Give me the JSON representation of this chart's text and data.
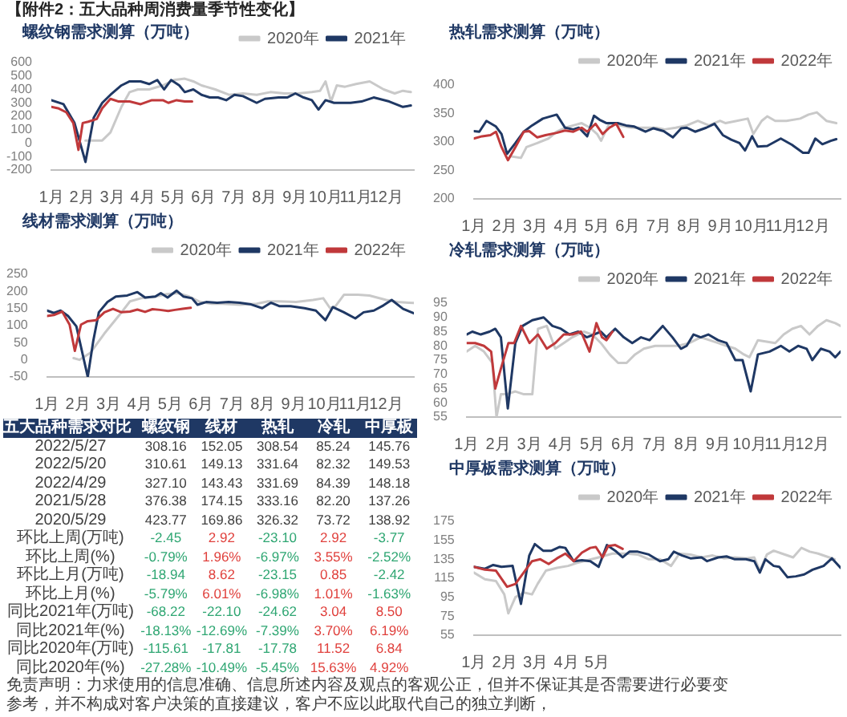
{
  "chart_data": [
    {
      "type": "other",
      "title": "【附件2：五大品种周消费量季节性变化】"
    },
    {
      "type": "line",
      "title": "螺纹钢需求测算（万吨）",
      "legend": "top right",
      "grid": false,
      "xlim": [
        1,
        12.9
      ],
      "xticks": [
        {
          "value": 1,
          "label": "1月"
        },
        {
          "value": 2,
          "label": "2月"
        },
        {
          "value": 3,
          "label": "3月"
        },
        {
          "value": 4,
          "label": "4月"
        },
        {
          "value": 5,
          "label": "5月"
        },
        {
          "value": 6,
          "label": "6月"
        },
        {
          "value": 7,
          "label": "7月"
        },
        {
          "value": 8,
          "label": "8月"
        },
        {
          "value": 9,
          "label": "9月"
        },
        {
          "value": 10,
          "label": "10月"
        },
        {
          "value": 11,
          "label": "11月"
        },
        {
          "value": 12,
          "label": "12月"
        }
      ],
      "ylim": [
        -200,
        600
      ],
      "yticks": [
        -200,
        -100,
        0,
        100,
        200,
        300,
        400,
        500,
        600
      ],
      "series": [
        {
          "name": "2020年",
          "color": "#c9c9c9",
          "x": [
            2.12,
            2.39,
            2.67,
            2.94,
            3.3,
            3.57,
            3.84,
            4.21,
            4.66,
            5.02,
            5.38,
            5.66,
            5.93,
            6.38,
            6.83,
            7.29,
            7.74,
            8.19,
            8.65,
            9.1,
            9.55,
            9.82,
            10.0,
            10.18,
            10.37,
            10.64,
            11.0,
            11.45,
            11.91,
            12.27,
            12.54,
            12.8
          ],
          "values": [
            20,
            20,
            20,
            80,
            270,
            380,
            400,
            400,
            430,
            470,
            480,
            460,
            430,
            400,
            360,
            370,
            360,
            380,
            370,
            370,
            380,
            390,
            460,
            310,
            430,
            420,
            440,
            460,
            400,
            370,
            390,
            380
          ]
        },
        {
          "name": "2021年",
          "color": "#1f3864",
          "x": [
            1.0,
            1.4,
            1.76,
            2.12,
            2.39,
            2.67,
            2.94,
            3.3,
            3.57,
            3.93,
            4.21,
            4.48,
            4.7,
            4.93,
            5.2,
            5.38,
            5.66,
            5.93,
            6.2,
            6.47,
            6.74,
            7.01,
            7.29,
            7.74,
            8.01,
            8.46,
            8.74,
            9.01,
            9.28,
            9.55,
            9.77,
            10.0,
            10.28,
            10.55,
            10.82,
            11.18,
            11.58,
            12.09,
            12.54,
            12.8
          ],
          "values": [
            320,
            290,
            150,
            -140,
            190,
            300,
            360,
            430,
            460,
            460,
            440,
            470,
            400,
            470,
            430,
            380,
            400,
            360,
            340,
            340,
            320,
            360,
            350,
            300,
            330,
            340,
            340,
            370,
            340,
            320,
            250,
            320,
            300,
            300,
            300,
            310,
            340,
            310,
            270,
            280
          ]
        },
        {
          "color": "#c0393b",
          "x": [
            1.0,
            1.22,
            1.49,
            1.72,
            1.89,
            2.03,
            2.21,
            2.49,
            2.67,
            2.94,
            3.21,
            3.57,
            3.93,
            4.3,
            4.66,
            4.84,
            5.11,
            5.38,
            5.62
          ],
          "values": [
            270,
            260,
            230,
            150,
            -50,
            150,
            160,
            180,
            260,
            330,
            310,
            310,
            290,
            320,
            320,
            300,
            320,
            310,
            310
          ]
        }
      ]
    },
    {
      "type": "line",
      "title": "热轧需求测算（万吨）",
      "legend": "top right",
      "grid": false,
      "xlim": [
        1,
        12.9
      ],
      "xticks": [
        {
          "value": 1,
          "label": "1月"
        },
        {
          "value": 2,
          "label": "2月"
        },
        {
          "value": 3,
          "label": "3月"
        },
        {
          "value": 4,
          "label": "4月"
        },
        {
          "value": 5,
          "label": "5月"
        },
        {
          "value": 6,
          "label": "6月"
        },
        {
          "value": 7,
          "label": "7月"
        },
        {
          "value": 8,
          "label": "8月"
        },
        {
          "value": 9,
          "label": "9月"
        },
        {
          "value": 10,
          "label": "10月"
        },
        {
          "value": 11,
          "label": "11月"
        },
        {
          "value": 12,
          "label": "12月"
        }
      ],
      "ylim": [
        200,
        400
      ],
      "yticks": [
        200,
        250,
        300,
        350,
        400
      ],
      "series": [
        {
          "name": "2020年",
          "color": "#c9c9c9",
          "x": [
            2.17,
            2.53,
            2.71,
            3.06,
            3.42,
            3.69,
            3.96,
            4.23,
            4.5,
            4.77,
            5.0,
            5.13,
            5.4,
            5.76,
            6.12,
            6.57,
            6.92,
            7.19,
            7.55,
            7.91,
            8.27,
            8.63,
            8.99,
            9.17,
            9.53,
            9.89,
            10.07,
            10.34,
            10.52,
            10.78,
            11.14,
            11.59,
            11.86,
            12.13,
            12.44,
            12.76
          ],
          "values": [
            275,
            272,
            291,
            298,
            306,
            318,
            325,
            329,
            333,
            325,
            314,
            302,
            333,
            329,
            325,
            325,
            325,
            322,
            325,
            329,
            337,
            329,
            337,
            333,
            337,
            341,
            314,
            337,
            345,
            337,
            337,
            341,
            348,
            352,
            337,
            333
          ]
        },
        {
          "name": "2021年",
          "color": "#1f3864",
          "x": [
            1.0,
            1.18,
            1.41,
            1.72,
            1.9,
            2.08,
            2.35,
            2.62,
            2.89,
            3.24,
            3.69,
            3.96,
            4.23,
            4.41,
            4.68,
            4.9,
            5.08,
            5.31,
            5.67,
            5.94,
            6.21,
            6.57,
            6.83,
            7.16,
            7.46,
            7.73,
            7.91,
            8.18,
            8.54,
            8.81,
            9.08,
            9.35,
            9.62,
            9.8,
            10.03,
            10.21,
            10.52,
            10.96,
            11.32,
            11.68,
            11.86,
            12.08,
            12.31,
            12.58,
            12.76
          ],
          "values": [
            319,
            318,
            337,
            327,
            314,
            279,
            298,
            318,
            329,
            341,
            348,
            325,
            322,
            325,
            310,
            346,
            339,
            333,
            333,
            329,
            327,
            318,
            324,
            319,
            308,
            324,
            325,
            318,
            325,
            332,
            312,
            304,
            298,
            285,
            310,
            292,
            293,
            306,
            295,
            281,
            281,
            306,
            296,
            302,
            305
          ]
        },
        {
          "name": "2022年",
          "color": "#c0393b",
          "x": [
            1.0,
            1.27,
            1.54,
            1.72,
            1.9,
            2.11,
            2.35,
            2.62,
            2.8,
            3.06,
            3.33,
            3.69,
            3.96,
            4.23,
            4.5,
            4.68,
            4.95,
            5.18,
            5.4,
            5.62,
            5.85
          ],
          "values": [
            306,
            310,
            312,
            318,
            291,
            268,
            291,
            318,
            319,
            308,
            312,
            316,
            320,
            318,
            325,
            318,
            332,
            314,
            325,
            332,
            309
          ]
        }
      ]
    },
    {
      "type": "line",
      "title": "线材需求测算（万吨）",
      "legend": "top right",
      "grid": false,
      "xlim": [
        1,
        12.9
      ],
      "xticks": [
        {
          "value": 1,
          "label": "1月"
        },
        {
          "value": 2,
          "label": "2月"
        },
        {
          "value": 3,
          "label": "3月"
        },
        {
          "value": 4,
          "label": "4月"
        },
        {
          "value": 5,
          "label": "5月"
        },
        {
          "value": 6,
          "label": "6月"
        },
        {
          "value": 7,
          "label": "7月"
        },
        {
          "value": 8,
          "label": "8月"
        },
        {
          "value": 9,
          "label": "9月"
        },
        {
          "value": 10,
          "label": "10月"
        },
        {
          "value": 11,
          "label": "11月"
        },
        {
          "value": 12,
          "label": "12月"
        }
      ],
      "ylim": [
        -50,
        250
      ],
      "yticks": [
        -50,
        0,
        50,
        100,
        150,
        200,
        250
      ],
      "series": [
        {
          "name": "2020年",
          "color": "#c9c9c9",
          "x": [
            1.86,
            2.05,
            2.41,
            2.86,
            3.32,
            3.69,
            4.05,
            4.51,
            4.88,
            5.24,
            5.61,
            5.97,
            6.34,
            6.7,
            7.25,
            7.8,
            8.17,
            8.53,
            9.08,
            9.63,
            9.96,
            10.18,
            10.36,
            10.63,
            11.09,
            11.46,
            12.0,
            12.37,
            12.74,
            12.9
          ],
          "values": [
            5,
            0,
            21,
            77,
            128,
            171,
            180,
            185,
            192,
            195,
            185,
            169,
            164,
            164,
            161,
            164,
            171,
            171,
            169,
            175,
            180,
            151,
            157,
            190,
            190,
            188,
            175,
            169,
            167,
            166
          ]
        },
        {
          "name": "2021年",
          "color": "#1f3864",
          "x": [
            1.0,
            1.22,
            1.44,
            1.68,
            1.95,
            2.32,
            2.5,
            2.68,
            2.96,
            3.23,
            3.6,
            3.93,
            4.18,
            4.51,
            4.69,
            4.91,
            5.2,
            5.42,
            5.7,
            5.88,
            6.16,
            6.52,
            6.89,
            7.25,
            7.62,
            7.98,
            8.26,
            8.53,
            8.9,
            9.35,
            9.72,
            10.03,
            10.27,
            10.63,
            11.0,
            11.27,
            11.6,
            11.91,
            12.18,
            12.55,
            12.9
          ],
          "values": [
            144,
            137,
            144,
            128,
            98,
            -50,
            56,
            139,
            169,
            185,
            188,
            198,
            182,
            185,
            195,
            182,
            202,
            185,
            180,
            161,
            169,
            167,
            169,
            167,
            162,
            151,
            167,
            157,
            157,
            151,
            144,
            116,
            154,
            139,
            121,
            139,
            144,
            159,
            175,
            149,
            136
          ]
        },
        {
          "name": "2022年",
          "color": "#c0393b",
          "x": [
            1.0,
            1.22,
            1.49,
            1.73,
            1.9,
            2.1,
            2.32,
            2.59,
            2.86,
            3.14,
            3.41,
            3.69,
            3.93,
            4.18,
            4.42,
            4.66,
            4.93,
            5.15,
            5.4,
            5.66
          ],
          "values": [
            128,
            131,
            141,
            103,
            26,
            103,
            113,
            116,
            139,
            149,
            139,
            141,
            147,
            140,
            148,
            146,
            143,
            146,
            149,
            152
          ]
        }
      ]
    },
    {
      "type": "line",
      "title": "冷轧需求测算（万吨）",
      "legend": "top right",
      "grid": false,
      "xlim": [
        1,
        12.9
      ],
      "xticks": [
        {
          "value": 1,
          "label": "1月"
        },
        {
          "value": 2,
          "label": "2月"
        },
        {
          "value": 3,
          "label": "3月"
        },
        {
          "value": 4,
          "label": "4月"
        },
        {
          "value": 5,
          "label": "5月"
        },
        {
          "value": 6,
          "label": "6月"
        },
        {
          "value": 7,
          "label": "7月"
        },
        {
          "value": 8,
          "label": "8月"
        },
        {
          "value": 9,
          "label": "9月"
        },
        {
          "value": 10,
          "label": "10月"
        },
        {
          "value": 11,
          "label": "11月"
        },
        {
          "value": 12,
          "label": "12月"
        }
      ],
      "ylim": [
        55,
        95
      ],
      "yticks": [
        55,
        60,
        65,
        70,
        75,
        80,
        85,
        90,
        95
      ],
      "series": [
        {
          "name": "2020年",
          "color": "#c9c9c9",
          "x": [
            1.0,
            1.27,
            1.55,
            1.82,
            1.95,
            2.09,
            2.27,
            2.55,
            2.82,
            3.09,
            3.27,
            3.55,
            3.82,
            4.09,
            4.36,
            4.73,
            5.0,
            5.27,
            5.55,
            5.82,
            6.09,
            6.36,
            6.64,
            7.0,
            7.36,
            7.73,
            8.09,
            8.45,
            8.73,
            9.0,
            9.27,
            9.55,
            9.82,
            10.0,
            10.27,
            10.82,
            11.09,
            11.36,
            11.64,
            11.91,
            12.18,
            12.45,
            12.73,
            12.9
          ],
          "values": [
            78,
            80,
            78,
            74,
            55,
            63,
            63,
            64,
            63,
            63,
            86,
            87,
            79,
            81,
            83,
            85,
            84,
            81,
            77,
            74,
            74,
            77,
            79,
            80,
            80,
            80,
            81,
            83,
            82,
            81,
            80,
            79,
            77,
            76,
            82,
            81,
            84,
            86,
            87,
            84,
            87,
            89,
            88,
            87
          ]
        },
        {
          "name": "2021年",
          "color": "#1f3864",
          "x": [
            1.0,
            1.18,
            1.45,
            1.73,
            1.91,
            2.09,
            2.31,
            2.55,
            2.78,
            3.09,
            3.45,
            3.73,
            4.0,
            4.27,
            4.55,
            4.82,
            5.05,
            5.27,
            5.45,
            5.73,
            6.0,
            6.27,
            6.55,
            6.82,
            7.24,
            7.55,
            7.82,
            8.0,
            8.22,
            8.45,
            8.69,
            9.0,
            9.27,
            9.55,
            9.78,
            10.04,
            10.27,
            10.64,
            11.0,
            11.27,
            11.55,
            11.82,
            12.0,
            12.27,
            12.55,
            12.73,
            12.9
          ],
          "values": [
            84,
            85,
            84,
            85,
            86,
            83,
            58,
            81,
            87,
            89,
            90,
            87,
            86,
            84,
            85,
            83,
            84,
            85,
            83,
            86,
            83,
            81,
            83,
            82,
            87,
            83,
            79,
            80,
            84,
            83,
            84,
            82,
            81,
            75,
            75,
            64,
            77,
            78,
            80,
            78,
            80,
            79,
            75,
            79,
            78,
            76,
            78
          ]
        },
        {
          "name": "2022年",
          "color": "#c0393b",
          "x": [
            1.0,
            1.27,
            1.55,
            1.78,
            1.91,
            2.09,
            2.33,
            2.51,
            2.73,
            3.0,
            3.27,
            3.55,
            3.82,
            4.09,
            4.36,
            4.64,
            4.91,
            5.13,
            5.31,
            5.45,
            5.64
          ],
          "values": [
            81,
            81,
            80,
            78,
            65,
            72,
            81,
            81,
            87,
            81,
            84,
            79,
            81,
            84,
            84,
            85,
            78,
            88,
            83,
            82,
            85
          ]
        }
      ]
    },
    {
      "type": "other",
      "title": "五大品种需求对比",
      "categories": [
        "螺纹钢",
        "线材",
        "热轧",
        "冷轧",
        "中厚板"
      ],
      "y_categories": [
        "2022/5/27",
        "2022/5/20",
        "2022/4/29",
        "2021/5/28",
        "2020/5/29",
        "环比上周(万吨)",
        "环比上周(%)",
        "环比上月(万吨)",
        "环比上月(%)",
        "同比2021年(万吨)",
        "同比2021年(%)",
        "同比2020年(万吨)",
        "同比2020年(%)"
      ],
      "cell_labels": [
        [
          "308.16",
          "152.05",
          "308.54",
          "85.24",
          "145.76"
        ],
        [
          "310.61",
          "149.13",
          "331.64",
          "82.32",
          "149.53"
        ],
        [
          "327.10",
          "143.43",
          "331.69",
          "84.39",
          "148.18"
        ],
        [
          "376.38",
          "174.15",
          "333.16",
          "82.20",
          "137.26"
        ],
        [
          "423.77",
          "169.86",
          "326.32",
          "73.72",
          "138.92"
        ],
        [
          "-2.45",
          "2.92",
          "-23.10",
          "2.92",
          "-3.77"
        ],
        [
          "-0.79%",
          "1.96%",
          "-6.97%",
          "3.55%",
          "-2.52%"
        ],
        [
          "-18.94",
          "8.62",
          "-23.15",
          "0.85",
          "-2.42"
        ],
        [
          "-5.79%",
          "6.01%",
          "-6.98%",
          "1.01%",
          "-1.63%"
        ],
        [
          "-68.22",
          "-22.10",
          "-24.62",
          "3.04",
          "8.50"
        ],
        [
          "-18.13%",
          "-12.69%",
          "-7.39%",
          "3.70%",
          "6.19%"
        ],
        [
          "-115.61",
          "-17.81",
          "-17.78",
          "11.52",
          "6.84"
        ],
        [
          "-27.28%",
          "-10.49%",
          "-5.45%",
          "15.63%",
          "4.92%"
        ]
      ],
      "colors": [
        [
          "#404040",
          "#404040",
          "#404040",
          "#404040",
          "#404040"
        ],
        [
          "#404040",
          "#404040",
          "#404040",
          "#404040",
          "#404040"
        ],
        [
          "#404040",
          "#404040",
          "#404040",
          "#404040",
          "#404040"
        ],
        [
          "#404040",
          "#404040",
          "#404040",
          "#404040",
          "#404040"
        ],
        [
          "#404040",
          "#404040",
          "#404040",
          "#404040",
          "#404040"
        ],
        [
          "#2ea672",
          "#e0403c",
          "#2ea672",
          "#e0403c",
          "#2ea672"
        ],
        [
          "#2ea672",
          "#e0403c",
          "#2ea672",
          "#e0403c",
          "#2ea672"
        ],
        [
          "#2ea672",
          "#e0403c",
          "#2ea672",
          "#e0403c",
          "#2ea672"
        ],
        [
          "#2ea672",
          "#e0403c",
          "#2ea672",
          "#e0403c",
          "#2ea672"
        ],
        [
          "#2ea672",
          "#2ea672",
          "#2ea672",
          "#e0403c",
          "#e0403c"
        ],
        [
          "#2ea672",
          "#2ea672",
          "#2ea672",
          "#e0403c",
          "#e0403c"
        ],
        [
          "#2ea672",
          "#2ea672",
          "#2ea672",
          "#e0403c",
          "#e0403c"
        ],
        [
          "#2ea672",
          "#2ea672",
          "#2ea672",
          "#e0403c",
          "#e0403c"
        ]
      ]
    },
    {
      "type": "line",
      "title": "中厚板需求测算（万吨）",
      "legend": "top right",
      "grid": false,
      "xlim": [
        1,
        12.9
      ],
      "xticks": [
        {
          "value": 1,
          "label": "1月"
        },
        {
          "value": 2,
          "label": "2月"
        },
        {
          "value": 3,
          "label": "3月"
        },
        {
          "value": 4,
          "label": "4月"
        },
        {
          "value": 5,
          "label": "5月"
        }
      ],
      "ylim": [
        55,
        175
      ],
      "yticks": [
        55,
        75,
        95,
        115,
        135,
        155,
        175
      ],
      "series": [
        {
          "name": "2020年",
          "color": "#c9c9c9",
          "x": [
            1.0,
            1.36,
            1.72,
            1.99,
            2.12,
            2.35,
            2.62,
            2.89,
            3.07,
            3.34,
            3.7,
            4.06,
            4.33,
            4.69,
            5.05,
            5.5,
            5.95,
            6.32,
            6.68,
            7.04,
            7.4,
            7.67,
            8.03,
            8.39,
            8.75,
            9.11,
            9.47,
            9.83,
            10.1,
            10.28,
            10.51,
            10.73,
            11.0,
            11.36,
            11.63,
            11.9,
            12.17,
            12.53,
            12.71
          ],
          "values": [
            121,
            114,
            112,
            98,
            78,
            95,
            100,
            98,
            109,
            123,
            126,
            128,
            131,
            134,
            137,
            141,
            141,
            140,
            135,
            135,
            128,
            141,
            140,
            137,
            139,
            136,
            137,
            136,
            137,
            123,
            140,
            144,
            141,
            137,
            147,
            143,
            141,
            137,
            135
          ]
        },
        {
          "name": "2021年",
          "color": "#1f3864",
          "x": [
            1.0,
            1.36,
            1.63,
            1.9,
            2.26,
            2.53,
            2.8,
            2.98,
            3.25,
            3.52,
            3.79,
            3.97,
            4.24,
            4.51,
            4.78,
            5.05,
            5.32,
            5.59,
            5.83,
            6.05,
            6.32,
            6.68,
            7.04,
            7.31,
            7.49,
            7.76,
            8.03,
            8.39,
            8.57,
            8.93,
            9.2,
            9.47,
            9.83,
            10.1,
            10.28,
            10.46,
            10.73,
            10.91,
            11.18,
            11.45,
            11.72,
            11.99,
            12.35,
            12.62,
            12.9
          ],
          "values": [
            127,
            125,
            129,
            127,
            128,
            88,
            139,
            151,
            144,
            144,
            148,
            147,
            133,
            134,
            133,
            127,
            150,
            144,
            137,
            143,
            143,
            140,
            133,
            135,
            143,
            139,
            136,
            137,
            133,
            137,
            138,
            135,
            135,
            133,
            121,
            135,
            128,
            127,
            116,
            117,
            119,
            124,
            128,
            136,
            126
          ]
        },
        {
          "name": "2022年",
          "color": "#c0393b",
          "x": [
            1.0,
            1.36,
            1.72,
            2.08,
            2.35,
            2.62,
            2.89,
            3.16,
            3.43,
            3.7,
            3.97,
            4.24,
            4.51,
            4.78,
            4.96,
            5.18,
            5.36,
            5.59,
            5.83
          ],
          "values": [
            127,
            124,
            123,
            106,
            109,
            121,
            133,
            135,
            130,
            136,
            141,
            133,
            142,
            147,
            148,
            137,
            149,
            150,
            146
          ]
        }
      ]
    },
    {
      "type": "other",
      "annotations": [
        "免责声明：力求使用的信息准确、信息所述内容及观点的客观公正，但并不保证其是否需要进行必要变",
        "参考，并不构成对客户决策的直接建议，客户不应以此取代自己的独立判断，"
      ]
    }
  ]
}
